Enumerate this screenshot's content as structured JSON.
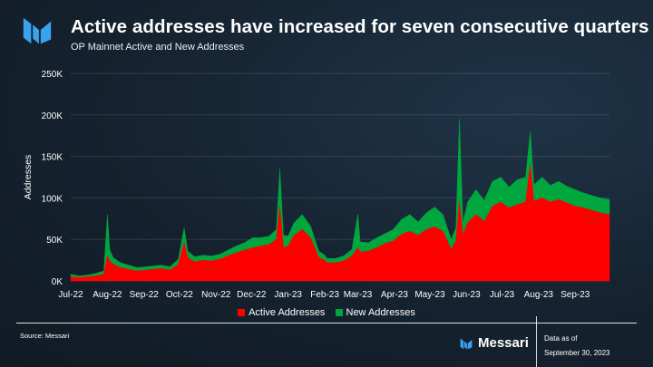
{
  "header": {
    "title": "Active addresses have increased for seven consecutive quarters",
    "subtitle": "OP Mainnet Active and New Addresses"
  },
  "footer": {
    "source": "Source: Messari",
    "brand": "Messari",
    "data_as_of_label": "Data as of",
    "data_as_of_date": "September 30, 2023"
  },
  "colors": {
    "active": "#ff0000",
    "new": "#00a63e",
    "axis_text": "#ffffff"
  },
  "icons": {
    "logo": "messari-logo-icon"
  },
  "chart_data": {
    "type": "area",
    "stacked": true,
    "title": "OP Mainnet Active and New Addresses",
    "ylabel": "Addresses",
    "ylim": [
      0,
      250000
    ],
    "yticks": [
      0,
      50000,
      100000,
      150000,
      200000,
      250000
    ],
    "ytick_labels": [
      "0K",
      "50K",
      "100K",
      "150K",
      "200K",
      "250K"
    ],
    "x_range": [
      "2022-07-01",
      "2023-09-30"
    ],
    "xtick_labels": [
      "Jul-22",
      "Aug-22",
      "Sep-22",
      "Oct-22",
      "Nov-22",
      "Dec-22",
      "Jan-23",
      "Feb-23",
      "Mar-23",
      "Apr-23",
      "May-23",
      "Jun-23",
      "Jul-23",
      "Aug-23",
      "Sep-23"
    ],
    "grid": "horizontal",
    "legend_position": "bottom",
    "series": [
      {
        "name": "Active Addresses",
        "color": "#ff0000",
        "x": [
          "2022-07-01",
          "2022-07-08",
          "2022-07-15",
          "2022-07-22",
          "2022-07-29",
          "2022-08-01",
          "2022-08-03",
          "2022-08-06",
          "2022-08-12",
          "2022-08-19",
          "2022-08-26",
          "2022-09-02",
          "2022-09-09",
          "2022-09-16",
          "2022-09-23",
          "2022-09-30",
          "2022-10-05",
          "2022-10-08",
          "2022-10-14",
          "2022-10-21",
          "2022-10-28",
          "2022-11-04",
          "2022-11-11",
          "2022-11-18",
          "2022-11-25",
          "2022-12-02",
          "2022-12-09",
          "2022-12-16",
          "2022-12-22",
          "2022-12-25",
          "2022-12-28",
          "2023-01-01",
          "2023-01-06",
          "2023-01-13",
          "2023-01-20",
          "2023-01-27",
          "2023-02-01",
          "2023-02-03",
          "2023-02-10",
          "2023-02-17",
          "2023-02-24",
          "2023-03-01",
          "2023-03-03",
          "2023-03-10",
          "2023-03-17",
          "2023-03-24",
          "2023-03-31",
          "2023-04-07",
          "2023-04-14",
          "2023-04-21",
          "2023-04-28",
          "2023-05-05",
          "2023-05-12",
          "2023-05-19",
          "2023-05-23",
          "2023-05-26",
          "2023-05-29",
          "2023-06-02",
          "2023-06-09",
          "2023-06-16",
          "2023-06-23",
          "2023-06-30",
          "2023-07-07",
          "2023-07-14",
          "2023-07-21",
          "2023-07-25",
          "2023-07-28",
          "2023-08-04",
          "2023-08-11",
          "2023-08-18",
          "2023-08-25",
          "2023-09-01",
          "2023-09-08",
          "2023-09-15",
          "2023-09-22",
          "2023-09-30"
        ],
        "values": [
          5000,
          4000,
          5000,
          6000,
          8000,
          30000,
          24000,
          20000,
          16000,
          14000,
          12000,
          13000,
          14000,
          15000,
          13000,
          20000,
          46000,
          28000,
          23000,
          25000,
          24000,
          26000,
          30000,
          34000,
          37000,
          40000,
          42000,
          44000,
          50000,
          90000,
          40000,
          42000,
          55000,
          62000,
          52000,
          28000,
          25000,
          22000,
          22000,
          24000,
          30000,
          40000,
          35000,
          36000,
          40000,
          45000,
          48000,
          56000,
          60000,
          55000,
          62000,
          65000,
          60000,
          38000,
          48000,
          95000,
          55000,
          70000,
          80000,
          72000,
          90000,
          95000,
          88000,
          92000,
          95000,
          140000,
          96000,
          100000,
          95000,
          98000,
          94000,
          90000,
          88000,
          85000,
          82000,
          80000
        ]
      },
      {
        "name": "New Addresses",
        "color": "#00a63e",
        "x": [
          "2022-07-01",
          "2022-07-08",
          "2022-07-15",
          "2022-07-22",
          "2022-07-29",
          "2022-08-01",
          "2022-08-03",
          "2022-08-06",
          "2022-08-12",
          "2022-08-19",
          "2022-08-26",
          "2022-09-02",
          "2022-09-09",
          "2022-09-16",
          "2022-09-23",
          "2022-09-30",
          "2022-10-05",
          "2022-10-08",
          "2022-10-14",
          "2022-10-21",
          "2022-10-28",
          "2022-11-04",
          "2022-11-11",
          "2022-11-18",
          "2022-11-25",
          "2022-12-02",
          "2022-12-09",
          "2022-12-16",
          "2022-12-22",
          "2022-12-25",
          "2022-12-28",
          "2023-01-01",
          "2023-01-06",
          "2023-01-13",
          "2023-01-20",
          "2023-01-27",
          "2023-02-01",
          "2023-02-03",
          "2023-02-10",
          "2023-02-17",
          "2023-02-24",
          "2023-03-01",
          "2023-03-03",
          "2023-03-10",
          "2023-03-17",
          "2023-03-24",
          "2023-03-31",
          "2023-04-07",
          "2023-04-14",
          "2023-04-21",
          "2023-04-28",
          "2023-05-05",
          "2023-05-12",
          "2023-05-19",
          "2023-05-23",
          "2023-05-26",
          "2023-05-29",
          "2023-06-02",
          "2023-06-09",
          "2023-06-16",
          "2023-06-23",
          "2023-06-30",
          "2023-07-07",
          "2023-07-14",
          "2023-07-21",
          "2023-07-25",
          "2023-07-28",
          "2023-08-04",
          "2023-08-11",
          "2023-08-18",
          "2023-08-25",
          "2023-09-01",
          "2023-09-08",
          "2023-09-15",
          "2023-09-22",
          "2023-09-30"
        ],
        "values": [
          3000,
          2000,
          2000,
          3000,
          4000,
          50000,
          14000,
          8000,
          6000,
          5000,
          4000,
          4000,
          4000,
          4000,
          4000,
          6000,
          18000,
          8000,
          6000,
          6000,
          6000,
          6000,
          7000,
          8000,
          9000,
          12000,
          10000,
          10000,
          12000,
          45000,
          15000,
          12000,
          15000,
          18000,
          14000,
          8000,
          6000,
          5000,
          5000,
          6000,
          8000,
          40000,
          12000,
          10000,
          12000,
          12000,
          14000,
          18000,
          20000,
          16000,
          20000,
          24000,
          20000,
          12000,
          16000,
          100000,
          15000,
          25000,
          30000,
          25000,
          30000,
          30000,
          25000,
          30000,
          30000,
          40000,
          20000,
          25000,
          20000,
          22000,
          20000,
          20000,
          18000,
          18000,
          18000,
          18000
        ]
      }
    ]
  }
}
